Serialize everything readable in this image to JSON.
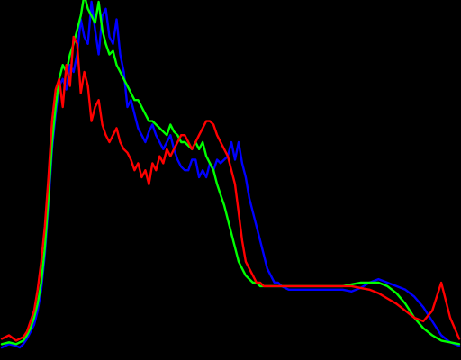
{
  "chart_data": {
    "type": "line",
    "title": "",
    "xlabel": "",
    "ylabel": "",
    "xlim": [
      0,
      255
    ],
    "ylim": [
      0,
      100
    ],
    "grid": false,
    "legend": "none",
    "background": "#000000",
    "series": [
      {
        "color": "#0000ff",
        "x": [
          0,
          4,
          8,
          10,
          12,
          14,
          16,
          18,
          20,
          22,
          24,
          26,
          28,
          30,
          32,
          34,
          36,
          38,
          40,
          42,
          44,
          46,
          48,
          50,
          52,
          54,
          56,
          58,
          60,
          62,
          64,
          66,
          68,
          70,
          72,
          74,
          76,
          78,
          80,
          82,
          84,
          86,
          88,
          90,
          92,
          94,
          96,
          98,
          100,
          102,
          104,
          106,
          108,
          110,
          112,
          114,
          116,
          118,
          120,
          122,
          124,
          126,
          128,
          130,
          132,
          134,
          136,
          138,
          140,
          142,
          144,
          146,
          148,
          150,
          152,
          154,
          156,
          160,
          165,
          170,
          175,
          180,
          185,
          190,
          195,
          200,
          205,
          210,
          215,
          220,
          225,
          230,
          235,
          240,
          245,
          250,
          255
        ],
        "y": [
          1.5,
          2.5,
          2.0,
          1.5,
          2.5,
          4,
          6,
          8,
          12,
          18,
          28,
          42,
          58,
          68,
          76,
          78,
          75,
          82,
          80,
          85,
          95,
          90,
          88,
          100,
          92,
          85,
          96,
          98,
          90,
          88,
          95,
          85,
          80,
          70,
          72,
          68,
          64,
          62,
          60,
          63,
          65,
          62,
          60,
          58,
          60,
          62,
          58,
          55,
          53,
          52,
          52,
          55,
          55,
          50,
          52,
          50,
          54,
          52,
          55,
          54,
          55,
          56,
          60,
          55,
          60,
          54,
          50,
          44,
          40,
          36,
          32,
          28,
          24,
          22,
          20,
          20,
          19,
          18,
          18,
          18,
          18,
          18,
          18,
          18,
          17.5,
          18.5,
          20,
          21,
          20,
          19,
          18,
          16,
          13,
          9,
          5,
          3,
          2
        ]
      },
      {
        "color": "#00ff00",
        "x": [
          0,
          4,
          8,
          10,
          12,
          14,
          16,
          18,
          20,
          22,
          24,
          26,
          28,
          30,
          32,
          34,
          36,
          38,
          40,
          42,
          44,
          46,
          48,
          50,
          52,
          54,
          56,
          58,
          60,
          62,
          64,
          66,
          68,
          70,
          72,
          74,
          76,
          78,
          80,
          82,
          84,
          86,
          88,
          90,
          92,
          94,
          96,
          98,
          100,
          102,
          104,
          106,
          108,
          110,
          112,
          114,
          116,
          118,
          120,
          122,
          124,
          126,
          128,
          130,
          132,
          134,
          136,
          138,
          140,
          142,
          144,
          146,
          148,
          150,
          152,
          154,
          156,
          160,
          165,
          170,
          175,
          180,
          185,
          190,
          195,
          200,
          205,
          210,
          215,
          220,
          225,
          230,
          235,
          240,
          245,
          250,
          255
        ],
        "y": [
          2.5,
          3,
          2.5,
          3,
          3.5,
          5,
          7,
          10,
          14,
          20,
          30,
          44,
          60,
          70,
          78,
          82,
          80,
          85,
          88,
          92,
          96,
          102,
          98,
          96,
          94,
          100,
          92,
          88,
          85,
          86,
          82,
          80,
          78,
          76,
          74,
          72,
          72,
          70,
          68,
          66,
          66,
          65,
          64,
          63,
          62,
          65,
          63,
          62,
          60,
          60,
          59,
          58,
          60,
          58,
          60,
          56,
          54,
          52,
          48,
          45,
          42,
          38,
          34,
          30,
          26,
          24,
          22,
          21,
          20,
          20,
          19,
          19,
          19,
          19,
          19,
          19,
          19,
          19,
          19,
          19,
          19,
          19,
          19,
          19,
          19.5,
          20,
          20,
          20,
          19,
          17,
          14,
          10,
          7,
          5,
          3.5,
          3,
          2.5
        ]
      },
      {
        "color": "#ff0000",
        "x": [
          0,
          4,
          8,
          10,
          12,
          14,
          16,
          18,
          20,
          22,
          24,
          26,
          28,
          30,
          32,
          34,
          36,
          38,
          40,
          42,
          44,
          46,
          48,
          50,
          52,
          54,
          56,
          58,
          60,
          62,
          64,
          66,
          68,
          70,
          72,
          74,
          76,
          78,
          80,
          82,
          84,
          86,
          88,
          90,
          92,
          94,
          96,
          98,
          100,
          102,
          104,
          106,
          108,
          110,
          112,
          114,
          116,
          118,
          120,
          122,
          124,
          126,
          128,
          130,
          132,
          134,
          136,
          138,
          140,
          142,
          144,
          146,
          148,
          150,
          152,
          154,
          156,
          160,
          165,
          170,
          175,
          180,
          185,
          190,
          195,
          200,
          205,
          210,
          215,
          220,
          225,
          230,
          235,
          240,
          245,
          250,
          255
        ],
        "y": [
          4,
          5,
          3.5,
          4,
          4.5,
          6,
          9,
          12,
          18,
          26,
          36,
          50,
          66,
          75,
          78,
          70,
          82,
          76,
          90,
          88,
          74,
          80,
          76,
          66,
          70,
          72,
          65,
          62,
          60,
          62,
          64,
          60,
          58,
          57,
          55,
          52,
          54,
          50,
          52,
          48,
          54,
          52,
          56,
          54,
          58,
          56,
          58,
          60,
          62,
          62,
          60,
          58,
          60,
          62,
          64,
          66,
          66,
          65,
          62,
          60,
          58,
          56,
          52,
          48,
          40,
          32,
          26,
          24,
          22,
          20,
          20,
          19,
          19,
          19,
          19,
          19,
          19,
          19,
          19,
          19,
          19,
          19,
          19,
          19,
          19,
          18.5,
          18,
          17,
          15.5,
          14,
          12,
          10,
          9,
          12,
          20,
          10,
          4
        ]
      }
    ]
  }
}
